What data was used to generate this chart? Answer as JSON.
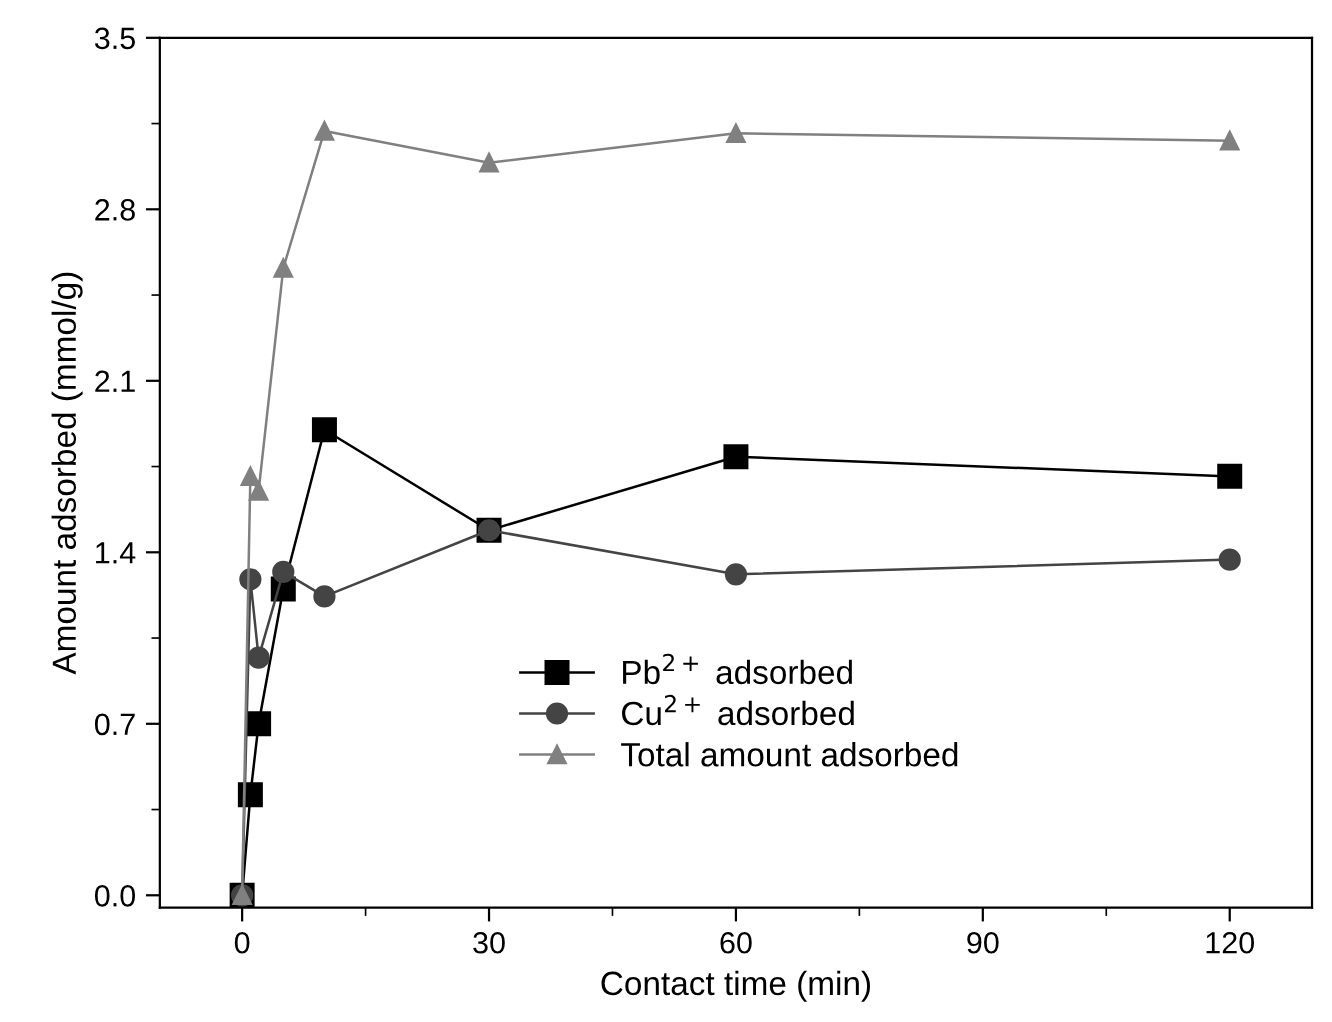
{
  "chart_data": {
    "type": "line",
    "xlabel": "Contact time (min)",
    "ylabel": "Amount adsorbed (mmol/g)",
    "x": [
      0,
      1,
      2,
      5,
      10,
      30,
      60,
      120
    ],
    "series": [
      {
        "name": "Pb$^{2+}$ adsorbed",
        "color": "#000000",
        "marker": "square",
        "values": [
          0,
          0.41,
          0.7,
          1.25,
          1.9,
          1.49,
          1.79,
          1.71
        ]
      },
      {
        "name": "Cu$^{2+}$ adsorbed",
        "color": "#444444",
        "marker": "circle",
        "values": [
          0,
          1.29,
          0.97,
          1.32,
          1.22,
          1.49,
          1.31,
          1.37
        ]
      },
      {
        "name": "Total amount adsorbed",
        "color": "#808080",
        "marker": "triangle",
        "values": [
          0,
          1.71,
          1.65,
          2.56,
          3.12,
          2.99,
          3.11,
          3.08
        ]
      }
    ],
    "xlim": [
      -10,
      130
    ],
    "xticks": [
      0,
      30,
      60,
      90,
      120
    ],
    "ylim": [
      -0.05,
      3.5
    ],
    "yticks": [
      {
        "value": 0,
        "label": "0.0"
      },
      0.7,
      1.4,
      2.1,
      2.8,
      3.5
    ],
    "grid": false,
    "legend": "bottom right",
    "line_style": "solid"
  }
}
